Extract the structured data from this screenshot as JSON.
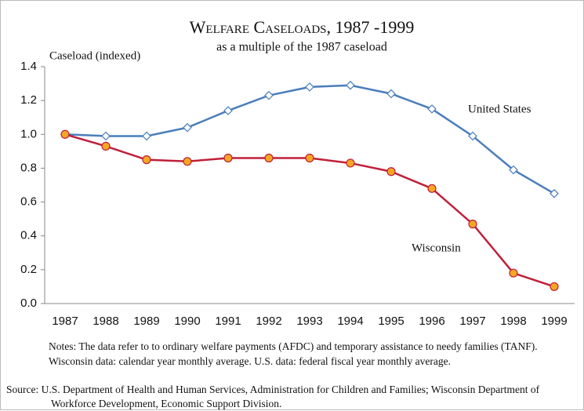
{
  "chart_data": {
    "type": "line",
    "title": "Welfare Caseloads, 1987 -1999",
    "subtitle": "as a multiple of the 1987 caseload",
    "y_label": "Caseload (indexed)",
    "categories": [
      "1987",
      "1988",
      "1989",
      "1990",
      "1991",
      "1992",
      "1993",
      "1994",
      "1995",
      "1996",
      "1997",
      "1998",
      "1999"
    ],
    "series": [
      {
        "name": "United States",
        "color": "#4a7ebb",
        "marker": "diamond",
        "marker_fill": "#ffffff",
        "values": [
          1.0,
          0.99,
          0.99,
          1.04,
          1.14,
          1.23,
          1.28,
          1.29,
          1.24,
          1.15,
          0.99,
          0.79,
          0.65
        ]
      },
      {
        "name": "Wisconsin",
        "color": "#c0203a",
        "marker": "circle",
        "marker_fill": "#f5a623",
        "values": [
          1.0,
          0.93,
          0.85,
          0.84,
          0.86,
          0.86,
          0.86,
          0.83,
          0.78,
          0.68,
          0.47,
          0.18,
          0.1
        ]
      }
    ],
    "ylim": [
      0,
      1.4
    ],
    "yticks": [
      {
        "value": 0,
        "label": "0.0"
      },
      0.2,
      0.4,
      0.6,
      0.8,
      {
        "value": 1,
        "label": "1.0"
      },
      1.2,
      1.4
    ],
    "grid": false,
    "notes": "Notes: The data refer to to ordinary welfare payments (AFDC) and temporary assistance to needy families (TANF). Wisconsin data: calendar year monthly average. U.S. data: federal fiscal year monthly average.",
    "source": "Source: U.S. Department of Health and Human Services, Administration for Children and Families;  Wisconsin Department of Workforce Development, Economic Support Division."
  }
}
